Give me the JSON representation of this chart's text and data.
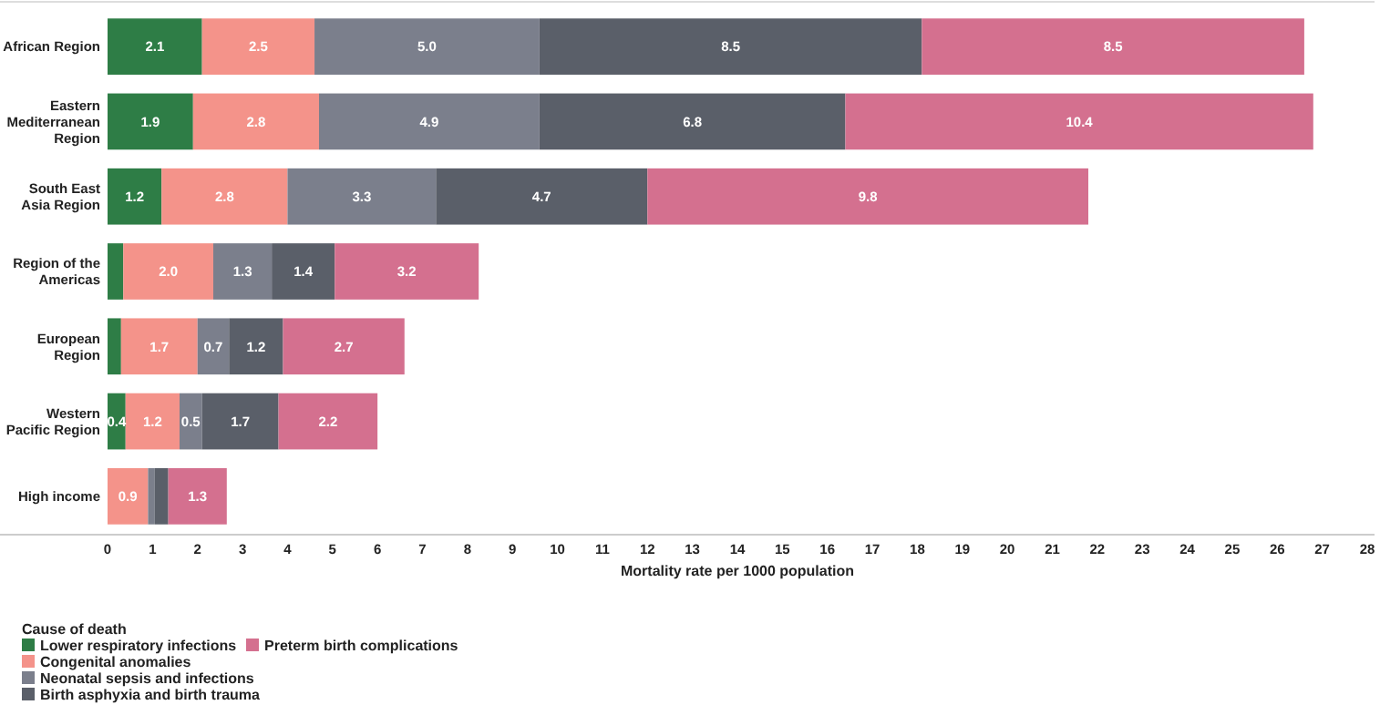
{
  "chart_data": {
    "type": "bar",
    "orientation": "horizontal",
    "stacked": true,
    "xlabel": "Mortality rate per 1000 population",
    "legend_title": "Cause of death",
    "legend": "bottom left",
    "categories": [
      "African Region",
      "Eastern Mediterranean Region",
      "South East Asia Region",
      "Region of the Americas",
      "European Region",
      "Western Pacific Region",
      "High income"
    ],
    "xlim": [
      0,
      28
    ],
    "xticks": [
      0,
      1,
      2,
      3,
      4,
      5,
      6,
      7,
      8,
      9,
      10,
      11,
      12,
      13,
      14,
      15,
      16,
      17,
      18,
      19,
      20,
      21,
      22,
      23,
      24,
      25,
      26,
      27,
      28
    ],
    "series": [
      {
        "name": "Lower respiratory infections",
        "color": "#2e7d46",
        "values": [
          2.1,
          1.9,
          1.2,
          0.35,
          0.3,
          0.4,
          null
        ],
        "value_labels": [
          "2.1",
          "1.9",
          "1.2",
          null,
          null,
          "0.4",
          null
        ]
      },
      {
        "name": "Congenital anomalies",
        "color": "#f4938a",
        "values": [
          2.5,
          2.8,
          2.8,
          2.0,
          1.7,
          1.2,
          0.9
        ],
        "value_labels": [
          "2.5",
          "2.8",
          "2.8",
          "2.0",
          "1.7",
          "1.2",
          "0.9"
        ]
      },
      {
        "name": "Neonatal sepsis and infections",
        "color": "#7b7f8c",
        "values": [
          5.0,
          4.9,
          3.3,
          1.3,
          0.7,
          0.5,
          0.15
        ],
        "value_labels": [
          "5.0",
          "4.9",
          "3.3",
          "1.3",
          "0.7",
          "0.5",
          null
        ]
      },
      {
        "name": "Birth asphyxia and birth trauma",
        "color": "#5a5f69",
        "values": [
          8.5,
          6.8,
          4.7,
          1.4,
          1.2,
          1.7,
          0.3
        ],
        "value_labels": [
          "8.5",
          "6.8",
          "4.7",
          "1.4",
          "1.2",
          "1.7",
          null
        ]
      },
      {
        "name": "Preterm birth complications",
        "color": "#d4708f",
        "values": [
          8.5,
          10.4,
          9.8,
          3.2,
          2.7,
          2.2,
          1.3
        ],
        "value_labels": [
          "8.5",
          "10.4",
          "9.8",
          "3.2",
          "2.7",
          "2.2",
          "1.3"
        ]
      }
    ]
  }
}
